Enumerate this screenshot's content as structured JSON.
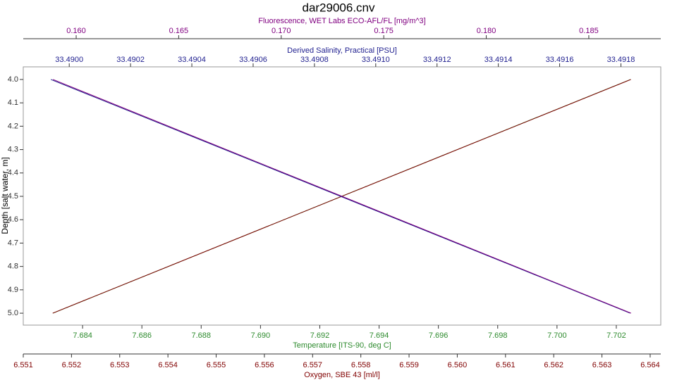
{
  "chart_data": {
    "type": "profile",
    "title": "dar29006.cnv",
    "y_label": "Depth [salt water, m]",
    "ylim": [
      3.946,
      5.051
    ],
    "y_inverted": true,
    "yticks": [
      {
        "value": 4,
        "label": "4.0"
      },
      4.1,
      4.2,
      4.3,
      4.4,
      4.5,
      4.6,
      4.7,
      4.8,
      4.9,
      {
        "value": 5,
        "label": "5.0"
      }
    ],
    "y": [
      4.0,
      5.0
    ],
    "x_axes": [
      {
        "label": "Fluorescence, WET Labs ECO-AFL/FL [mg/m^3]",
        "color": "#800080",
        "side": "top",
        "xlim": [
          0.15742,
          0.18851
        ],
        "xticks": [
          {
            "value": 0.16,
            "label": "0.160"
          },
          0.165,
          {
            "value": 0.17,
            "label": "0.170"
          },
          0.175,
          {
            "value": 0.18,
            "label": "0.180"
          },
          0.185
        ],
        "values": [
          0.15887,
          0.18706
        ]
      },
      {
        "label": "Derived Salinity, Practical [PSU]",
        "color": "#1f1f8f",
        "side": "top",
        "xlim": [
          33.48985,
          33.49193
        ],
        "xticks": [
          {
            "value": 33.49,
            "label": "33.4900"
          },
          33.4902,
          33.4904,
          33.4906,
          33.4908,
          {
            "value": 33.491,
            "label": "33.4910"
          },
          33.4912,
          33.4914,
          33.4916,
          33.4918
        ],
        "values": [
          33.48994,
          33.49183
        ]
      },
      {
        "label": "Temperature [ITS-90, deg C]",
        "color": "#2e8b2e",
        "side": "bottom",
        "xlim": [
          7.682,
          7.7035
        ],
        "xticks": [
          7.684,
          7.686,
          7.688,
          {
            "value": 7.69,
            "label": "7.690"
          },
          7.692,
          7.694,
          7.696,
          7.698,
          {
            "value": 7.7,
            "label": "7.700"
          },
          7.702
        ],
        "values": [
          7.70248,
          7.683
        ]
      },
      {
        "label": "Oxygen, SBE 43 [ml/l]",
        "color": "#800000",
        "side": "bottom",
        "xlim": [
          6.551,
          6.56422
        ],
        "xticks": [
          6.551,
          6.552,
          6.553,
          6.554,
          6.555,
          6.556,
          6.557,
          6.558,
          6.559,
          {
            "value": 6.56,
            "label": "6.560"
          },
          6.561,
          6.562,
          6.563,
          6.564
        ],
        "values": [
          6.5636,
          6.55161
        ]
      }
    ]
  }
}
